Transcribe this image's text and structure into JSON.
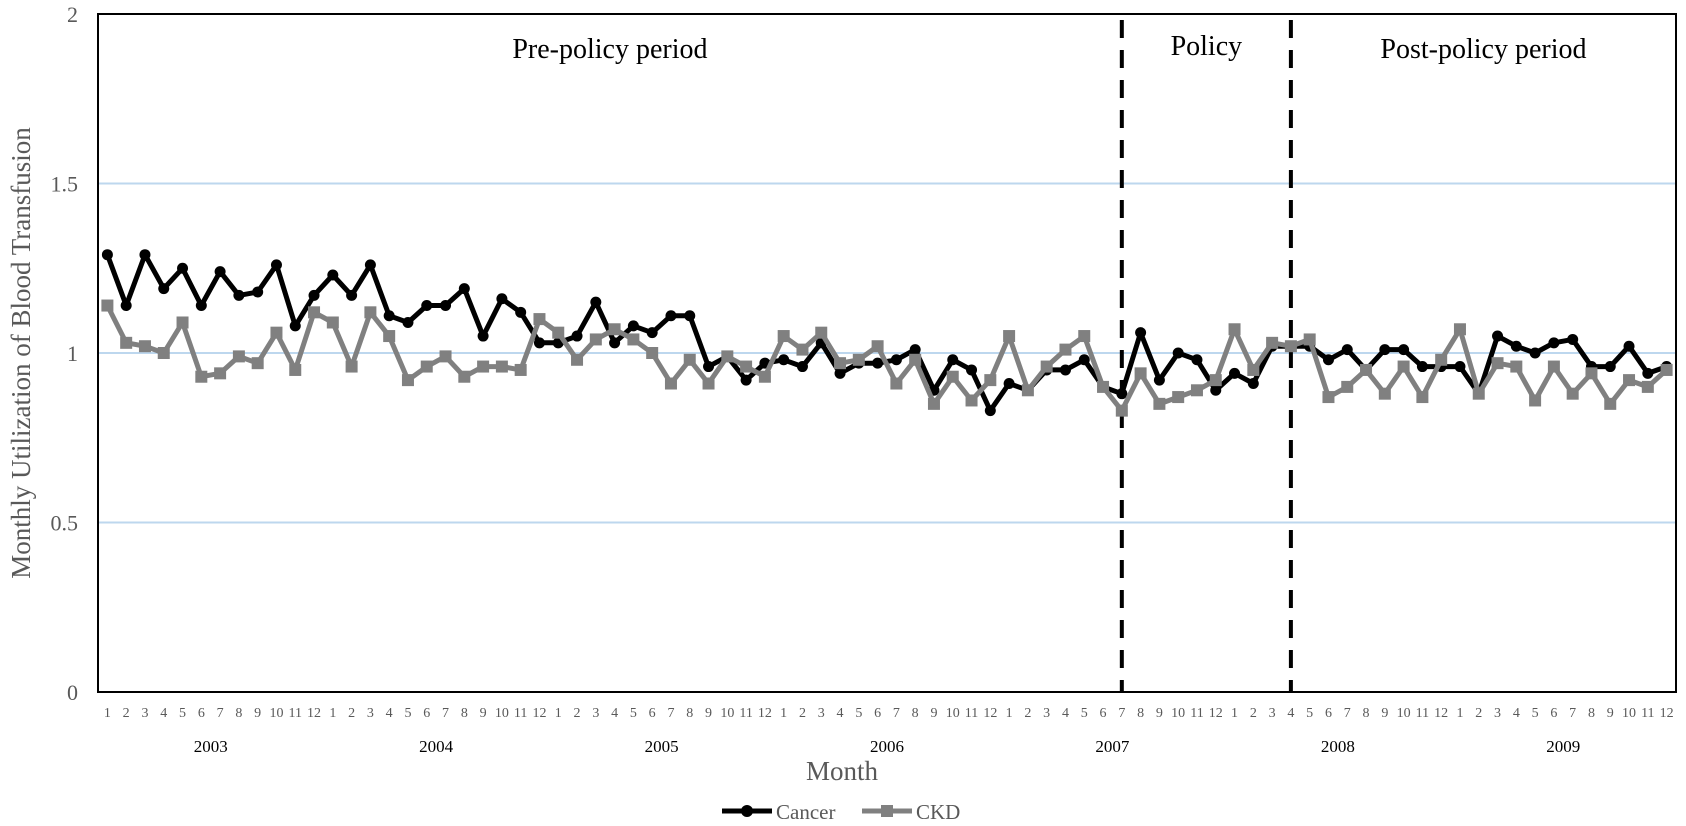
{
  "chart_data": {
    "type": "line",
    "title": "",
    "xlabel": "Month",
    "ylabel": "Monthly Utilization of Blood Transfusion",
    "ylim": [
      0,
      2
    ],
    "yticks": [
      "0",
      "0.5",
      "1",
      "1.5",
      "2"
    ],
    "years": [
      "2003",
      "2004",
      "2005",
      "2006",
      "2007",
      "2008",
      "2009"
    ],
    "month_labels": [
      "1",
      "2",
      "3",
      "4",
      "5",
      "6",
      "7",
      "8",
      "9",
      "10",
      "11",
      "12"
    ],
    "grid": true,
    "legend_position": "bottom",
    "period_labels": [
      "Pre-policy period",
      "Policy",
      "Post-policy period"
    ],
    "policy_markers": [
      "2007-07",
      "2008-04"
    ],
    "series": [
      {
        "name": "Cancer",
        "color": "#000000",
        "marker": "circle",
        "values": [
          1.29,
          1.14,
          1.29,
          1.19,
          1.25,
          1.14,
          1.24,
          1.17,
          1.18,
          1.26,
          1.08,
          1.17,
          1.23,
          1.17,
          1.26,
          1.11,
          1.09,
          1.14,
          1.14,
          1.19,
          1.05,
          1.16,
          1.12,
          1.03,
          1.03,
          1.05,
          1.15,
          1.03,
          1.08,
          1.06,
          1.11,
          1.11,
          0.96,
          0.99,
          0.92,
          0.97,
          0.98,
          0.96,
          1.03,
          0.94,
          0.97,
          0.97,
          0.98,
          1.01,
          0.89,
          0.98,
          0.95,
          0.83,
          0.91,
          0.89,
          0.95,
          0.95,
          0.98,
          0.9,
          0.88,
          1.06,
          0.92,
          1.0,
          0.98,
          0.89,
          0.94,
          0.91,
          1.02,
          1.02,
          1.02,
          0.98,
          1.01,
          0.95,
          1.01,
          1.01,
          0.96,
          0.96,
          0.96,
          0.88,
          1.05,
          1.02,
          1.0,
          1.03,
          1.04,
          0.96,
          0.96,
          1.02,
          0.94,
          0.96
        ]
      },
      {
        "name": "CKD",
        "color": "#808080",
        "marker": "square",
        "values": [
          1.14,
          1.03,
          1.02,
          1.0,
          1.09,
          0.93,
          0.94,
          0.99,
          0.97,
          1.06,
          0.95,
          1.12,
          1.09,
          0.96,
          1.12,
          1.05,
          0.92,
          0.96,
          0.99,
          0.93,
          0.96,
          0.96,
          0.95,
          1.1,
          1.06,
          0.98,
          1.04,
          1.07,
          1.04,
          1.0,
          0.91,
          0.98,
          0.91,
          0.99,
          0.96,
          0.93,
          1.05,
          1.01,
          1.06,
          0.97,
          0.98,
          1.02,
          0.91,
          0.98,
          0.85,
          0.93,
          0.86,
          0.92,
          1.05,
          0.89,
          0.96,
          1.01,
          1.05,
          0.9,
          0.83,
          0.94,
          0.85,
          0.87,
          0.89,
          0.92,
          1.07,
          0.95,
          1.03,
          1.02,
          1.04,
          0.87,
          0.9,
          0.95,
          0.88,
          0.96,
          0.87,
          0.98,
          1.07,
          0.88,
          0.97,
          0.96,
          0.86,
          0.96,
          0.88,
          0.94,
          0.85,
          0.92,
          0.9,
          0.95
        ]
      }
    ]
  }
}
